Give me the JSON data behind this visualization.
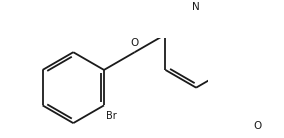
{
  "bg_color": "#ffffff",
  "line_color": "#1a1a1a",
  "line_width": 1.3,
  "fig_width": 2.84,
  "fig_height": 1.38,
  "dpi": 100,
  "xlim": [
    0.0,
    4.8
  ],
  "ylim": [
    -0.3,
    2.5
  ]
}
